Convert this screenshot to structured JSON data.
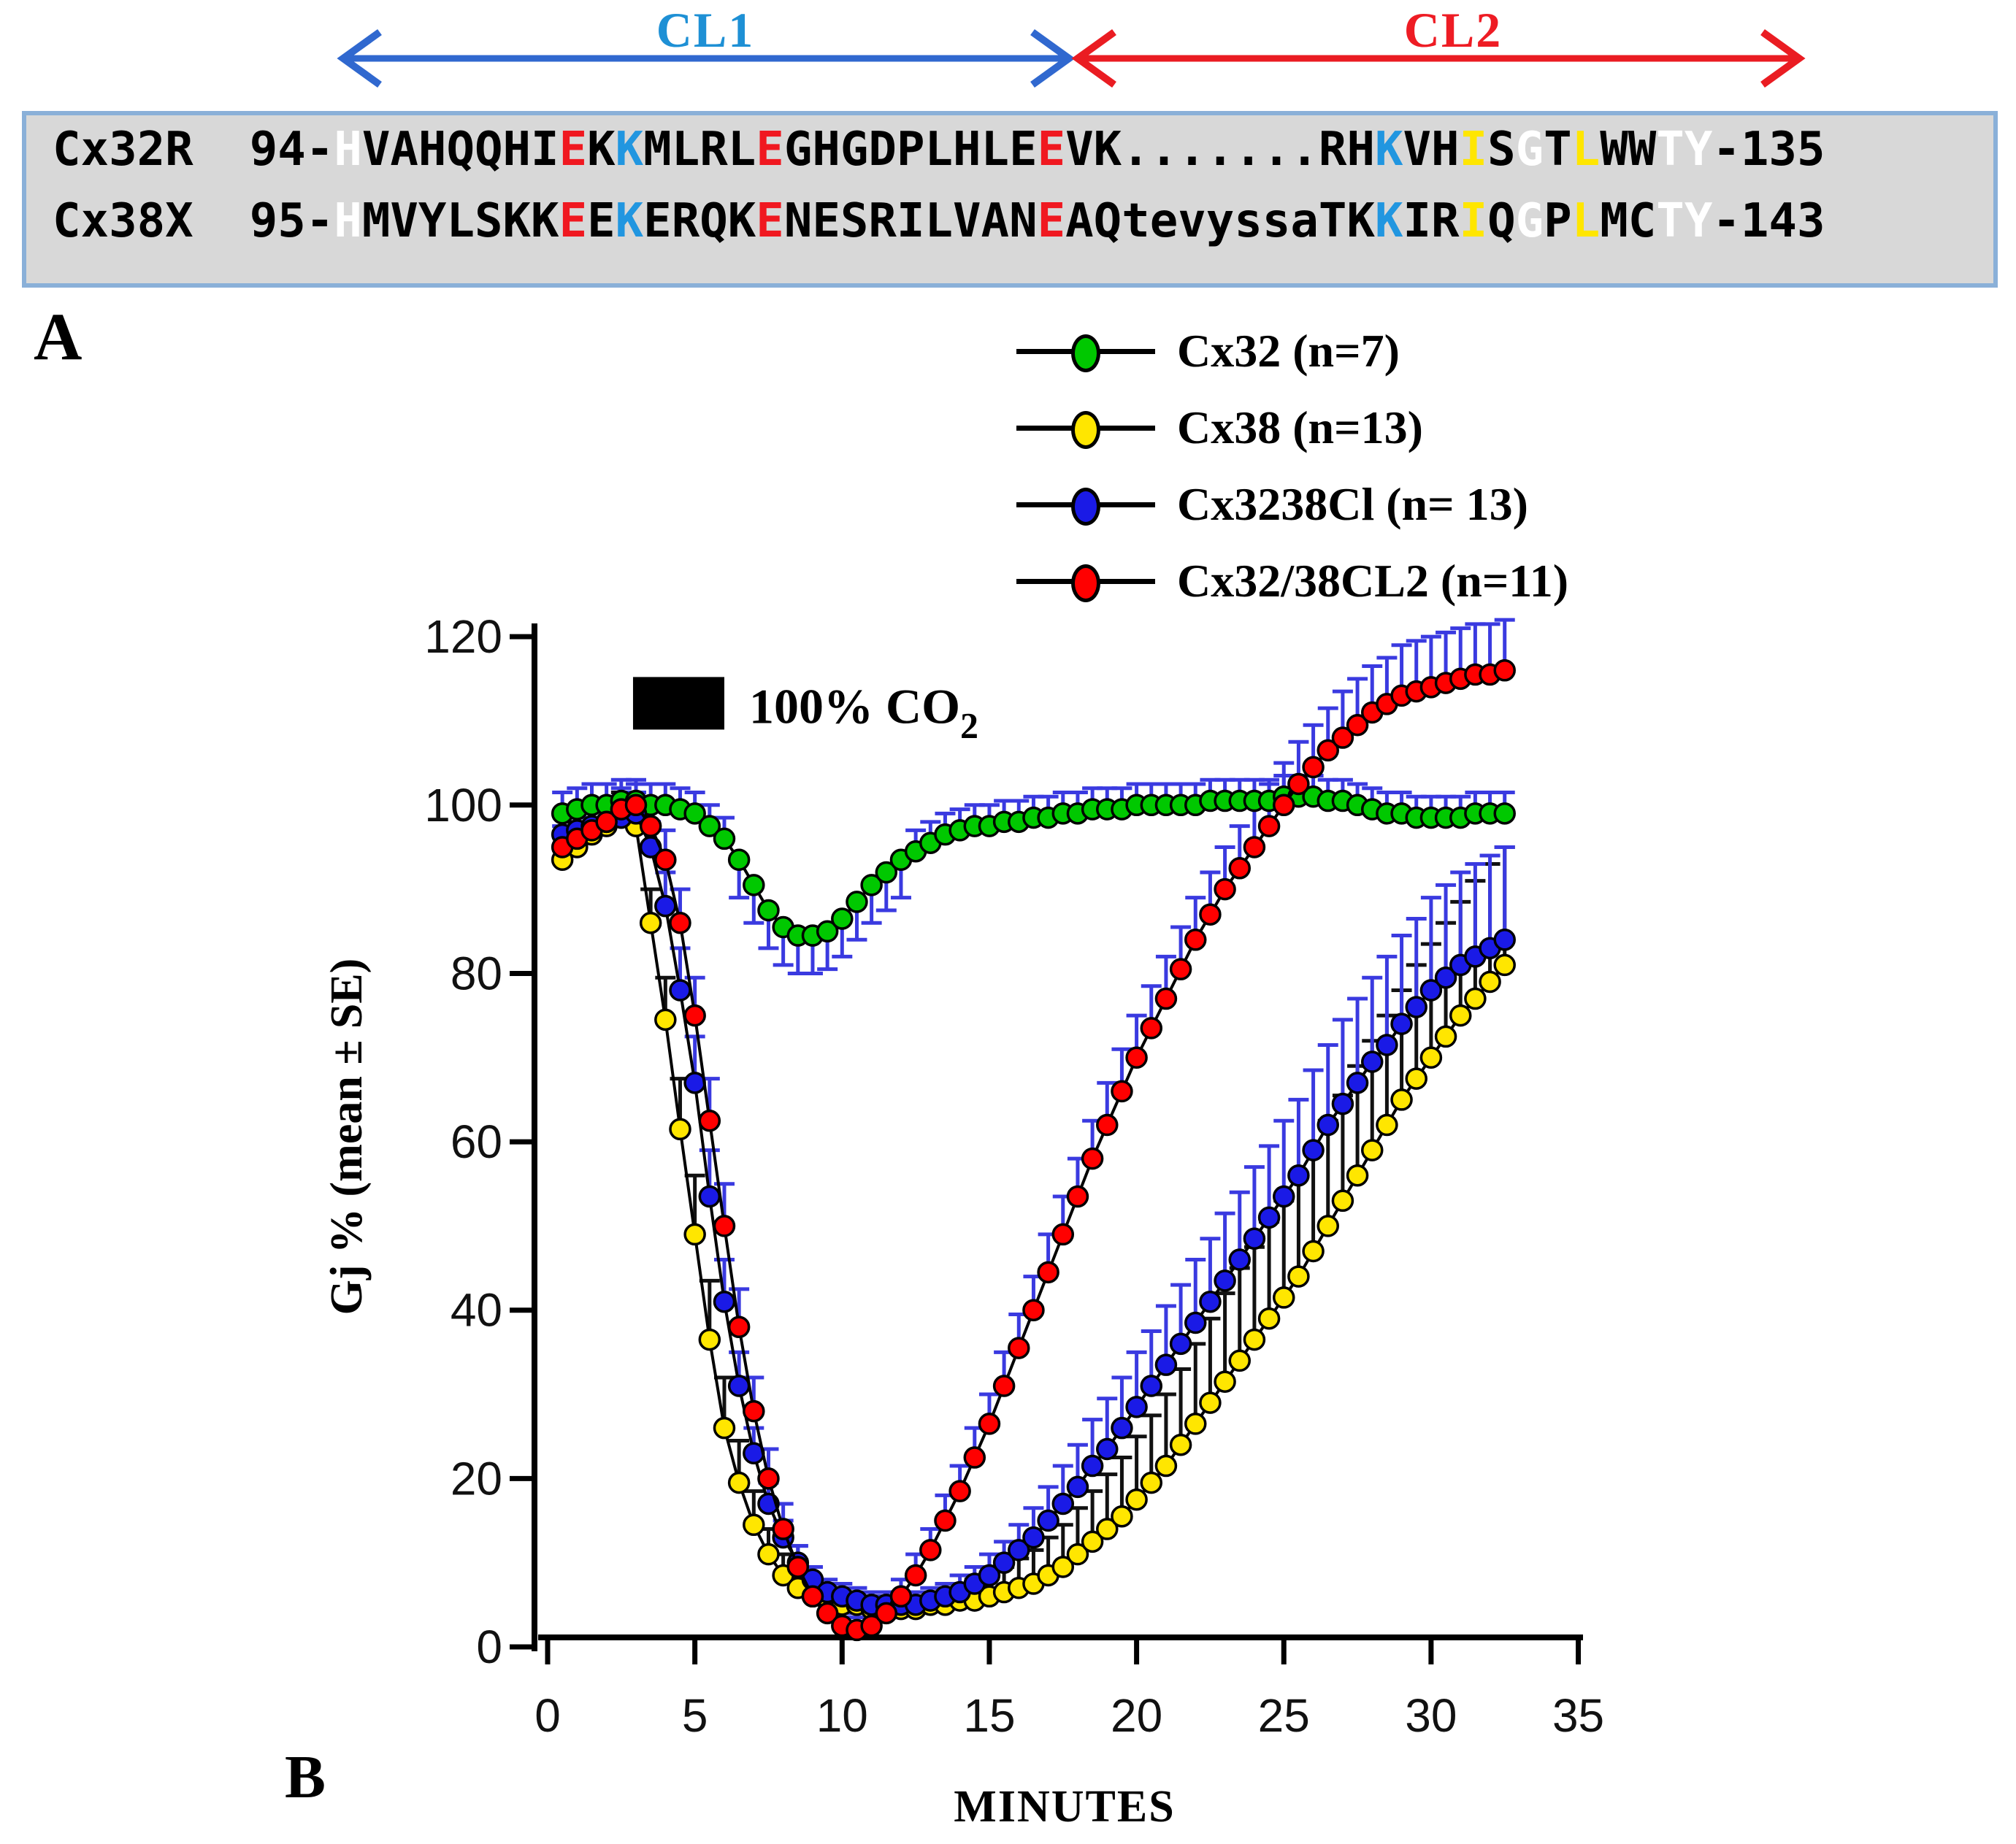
{
  "panelA": {
    "cl1_label": "CL1",
    "cl2_label": "CL2",
    "rows": [
      {
        "name": "Cx32R",
        "segments": [
          [
            "Cx32R  94-",
            "k"
          ],
          [
            "H",
            "w"
          ],
          [
            "VAHQQHI",
            "k"
          ],
          [
            "E",
            "r"
          ],
          [
            "K",
            "k"
          ],
          [
            "K",
            "b"
          ],
          [
            "MLRL",
            "k"
          ],
          [
            "E",
            "r"
          ],
          [
            "GHGDPLHLE",
            "k"
          ],
          [
            "E",
            "r"
          ],
          [
            "VK.......RH",
            "k"
          ],
          [
            "K",
            "b"
          ],
          [
            "VH",
            "k"
          ],
          [
            "I",
            "y"
          ],
          [
            "S",
            "k"
          ],
          [
            "G",
            "w"
          ],
          [
            "T",
            "k"
          ],
          [
            "L",
            "y"
          ],
          [
            "WW",
            "k"
          ],
          [
            "TY",
            "w"
          ],
          [
            "-135",
            "k"
          ]
        ]
      },
      {
        "name": "Cx38X",
        "segments": [
          [
            "Cx38X  95-",
            "k"
          ],
          [
            "H",
            "w"
          ],
          [
            "MVYLSKK",
            "k"
          ],
          [
            "E",
            "r"
          ],
          [
            "E",
            "k"
          ],
          [
            "K",
            "b"
          ],
          [
            "ERQK",
            "k"
          ],
          [
            "E",
            "r"
          ],
          [
            "NESRILVAN",
            "k"
          ],
          [
            "E",
            "r"
          ],
          [
            "AQtevyssaTK",
            "k"
          ],
          [
            "K",
            "b"
          ],
          [
            "IR",
            "k"
          ],
          [
            "I",
            "y"
          ],
          [
            "Q",
            "k"
          ],
          [
            "G",
            "w"
          ],
          [
            "P",
            "k"
          ],
          [
            "L",
            "y"
          ],
          [
            "MC",
            "k"
          ],
          [
            "TY",
            "w"
          ],
          [
            "-143",
            "k"
          ]
        ]
      }
    ]
  },
  "panel_labels": {
    "a": "A",
    "b": "B"
  },
  "legend": {
    "items": [
      {
        "label": "Cx32 (n=7)",
        "color": "#00c800"
      },
      {
        "label": "Cx38 (n=13)",
        "color": "#ffe600"
      },
      {
        "label": "Cx3238Cl (n= 13)",
        "color": "#1a1ae6"
      },
      {
        "label": "Cx32/38CL2 (n=11)",
        "color": "#ff0000"
      }
    ]
  },
  "chart_data": {
    "type": "line",
    "xlabel": "MINUTES",
    "ylabel": "Gj % (mean ± SE)",
    "xlim": [
      0,
      35
    ],
    "ylim": [
      0,
      120
    ],
    "x_ticks": [
      0,
      5,
      10,
      15,
      20,
      25,
      30,
      35
    ],
    "y_ticks": [
      0,
      20,
      40,
      60,
      80,
      100,
      120
    ],
    "grid": false,
    "legend_position": "top-right",
    "annotation": {
      "label": "100% CO",
      "subscript": "2",
      "bar_time_range": [
        2.9,
        6.0
      ],
      "bar_value_level": 112
    },
    "x": [
      0.5,
      1,
      1.5,
      2,
      2.5,
      3,
      3.5,
      4,
      4.5,
      5,
      5.5,
      6,
      6.5,
      7,
      7.5,
      8,
      8.5,
      9,
      9.5,
      10,
      10.5,
      11,
      11.5,
      12,
      12.5,
      13,
      13.5,
      14,
      14.5,
      15,
      15.5,
      16,
      16.5,
      17,
      17.5,
      18,
      18.5,
      19,
      19.5,
      20,
      20.5,
      21,
      21.5,
      22,
      22.5,
      23,
      23.5,
      24,
      24.5,
      25,
      25.5,
      26,
      26.5,
      27,
      27.5,
      28,
      28.5,
      29,
      29.5,
      30,
      30.5,
      31,
      31.5,
      32,
      32.5
    ],
    "series": [
      {
        "name": "Cx32",
        "n": 7,
        "color": "#00c800",
        "errbar_color": "#3a3ae0",
        "se_down_t_range": [
          6.5,
          12
        ],
        "values": [
          99,
          99.5,
          100,
          100,
          100.5,
          100.5,
          100,
          100,
          99.5,
          99,
          97.5,
          96,
          93.5,
          90.5,
          87.5,
          85.5,
          84.5,
          84.5,
          85,
          86.5,
          88.5,
          90.5,
          92,
          93.5,
          94.5,
          95.5,
          96.5,
          97,
          97.5,
          97.5,
          98,
          98,
          98.5,
          98.5,
          99,
          99,
          99.5,
          99.5,
          99.5,
          100,
          100,
          100,
          100,
          100,
          100.5,
          100.5,
          100.5,
          100.5,
          100.5,
          101,
          101,
          101,
          100.5,
          100.5,
          100,
          99.5,
          99,
          99,
          98.5,
          98.5,
          98.5,
          98.5,
          99,
          99,
          99
        ],
        "se": [
          2.5,
          2.5,
          2.5,
          2.5,
          2.5,
          2.5,
          2.5,
          2.5,
          2.5,
          2.5,
          2.5,
          2.5,
          4.5,
          4.5,
          4.5,
          4.5,
          4.5,
          4.5,
          4.5,
          4.5,
          4.5,
          4.5,
          4.5,
          4.5,
          2.5,
          2.5,
          2.5,
          2.5,
          2.5,
          2.5,
          2.5,
          2.5,
          2.5,
          2.5,
          2.5,
          2.5,
          2.5,
          2.5,
          2.5,
          2.5,
          2.5,
          2.5,
          2.5,
          2.5,
          2.5,
          2.5,
          2.5,
          2.5,
          2.5,
          2.5,
          2.5,
          2.5,
          2.5,
          2.5,
          2.5,
          2.5,
          2.5,
          2.5,
          2.5,
          2.5,
          2.5,
          2.5,
          2.5,
          2.5,
          2.5
        ]
      },
      {
        "name": "Cx38",
        "n": 13,
        "color": "#ffe600",
        "errbar_color": "#111111",
        "values": [
          93.5,
          95,
          96.5,
          97.5,
          98.5,
          97.5,
          86,
          74.5,
          61.5,
          49,
          36.5,
          26,
          19.5,
          14.5,
          11,
          8.5,
          7,
          6,
          5.5,
          5,
          5,
          4.5,
          4.5,
          4.5,
          4.5,
          5,
          5,
          5.5,
          5.5,
          6,
          6.5,
          7,
          7.5,
          8.5,
          9.5,
          11,
          12.5,
          14,
          15.5,
          17.5,
          19.5,
          21.5,
          24,
          26.5,
          29,
          31.5,
          34,
          36.5,
          39,
          41.5,
          44,
          47,
          50,
          53,
          56,
          59,
          62,
          65,
          67.5,
          70,
          72.5,
          75,
          77,
          79,
          81
        ],
        "se": [
          3,
          3,
          3,
          3,
          3,
          3,
          4,
          5,
          6,
          7,
          7,
          6,
          5,
          4,
          3,
          2.5,
          2,
          2,
          1.5,
          1.5,
          1.5,
          1.5,
          1.5,
          1.5,
          1.5,
          1.5,
          2,
          2,
          2.5,
          2.5,
          3,
          3.5,
          4,
          4.5,
          5,
          5.5,
          6,
          6.5,
          7,
          7.5,
          8,
          8.5,
          9,
          9.5,
          10,
          10.5,
          11,
          11,
          11.5,
          11.5,
          12,
          12,
          12.5,
          12.5,
          13,
          13,
          13,
          13,
          13.5,
          13.5,
          13.5,
          13.5,
          14,
          14,
          14
        ]
      },
      {
        "name": "Cx3238Cl",
        "n": 13,
        "color": "#1a1ae6",
        "errbar_color": "#3a3ae0",
        "values": [
          96.5,
          97,
          97.5,
          98,
          98.5,
          99,
          95,
          88,
          78,
          67,
          53.5,
          41,
          31,
          23,
          17,
          13,
          10,
          8,
          6.5,
          6,
          5.5,
          5,
          5,
          5,
          5,
          5.5,
          6,
          6.5,
          7.5,
          8.5,
          10,
          11.5,
          13,
          15,
          17,
          19,
          21.5,
          23.5,
          26,
          28.5,
          31,
          33.5,
          36,
          38.5,
          41,
          43.5,
          46,
          48.5,
          51,
          53.5,
          56,
          59,
          62,
          64.5,
          67,
          69.5,
          71.5,
          74,
          76,
          78,
          79.5,
          81,
          82,
          83,
          84
        ],
        "se": [
          2.5,
          2.5,
          2.5,
          2.5,
          2.5,
          2.5,
          3,
          4,
          5,
          5.5,
          5.5,
          5,
          4,
          3,
          2.5,
          2,
          2,
          1.5,
          1.5,
          1.5,
          1.5,
          1.5,
          1.5,
          1.5,
          1.5,
          1.5,
          1.5,
          2,
          2,
          2.5,
          2.5,
          3,
          3.5,
          4,
          4.5,
          5,
          5.5,
          6,
          6,
          6.5,
          6.5,
          7,
          7,
          7.5,
          7.5,
          8,
          8,
          8.5,
          8.5,
          9,
          9,
          9.5,
          9.5,
          10,
          10,
          10,
          10.5,
          10.5,
          10.5,
          11,
          11,
          11,
          11,
          11,
          11
        ]
      },
      {
        "name": "Cx32/38CL2",
        "n": 11,
        "color": "#ff0000",
        "errbar_color": "#3a3ae0",
        "values": [
          95,
          96,
          97,
          98,
          99.5,
          100,
          97.5,
          93.5,
          86,
          75,
          62.5,
          50,
          38,
          28,
          20,
          14,
          9.5,
          6,
          4,
          2.5,
          2,
          2.5,
          4,
          6,
          8.5,
          11.5,
          15,
          18.5,
          22.5,
          26.5,
          31,
          35.5,
          40,
          44.5,
          49,
          53.5,
          58,
          62,
          66,
          70,
          73.5,
          77,
          80.5,
          84,
          87,
          90,
          92.5,
          95,
          97.5,
          100,
          102.5,
          104.5,
          106.5,
          108,
          109.5,
          111,
          112,
          113,
          113.5,
          114,
          114.5,
          115,
          115.5,
          115.5,
          116
        ],
        "se": [
          2.5,
          2.5,
          2.5,
          2.5,
          2.5,
          2.5,
          3,
          3.5,
          4,
          4.5,
          5,
          5,
          4.5,
          4,
          3.5,
          3,
          2.5,
          2,
          1.5,
          1.5,
          1.5,
          1.5,
          2,
          2,
          2.5,
          2.5,
          3,
          3,
          3.5,
          3.5,
          4,
          4,
          4,
          4.5,
          4.5,
          4.5,
          4.5,
          5,
          5,
          5,
          5,
          5,
          5,
          5,
          5,
          5,
          5,
          5,
          5,
          5,
          5,
          5,
          5,
          5.5,
          5.5,
          5.5,
          5.5,
          6,
          6,
          6,
          6,
          6,
          6,
          6,
          6
        ]
      }
    ]
  }
}
